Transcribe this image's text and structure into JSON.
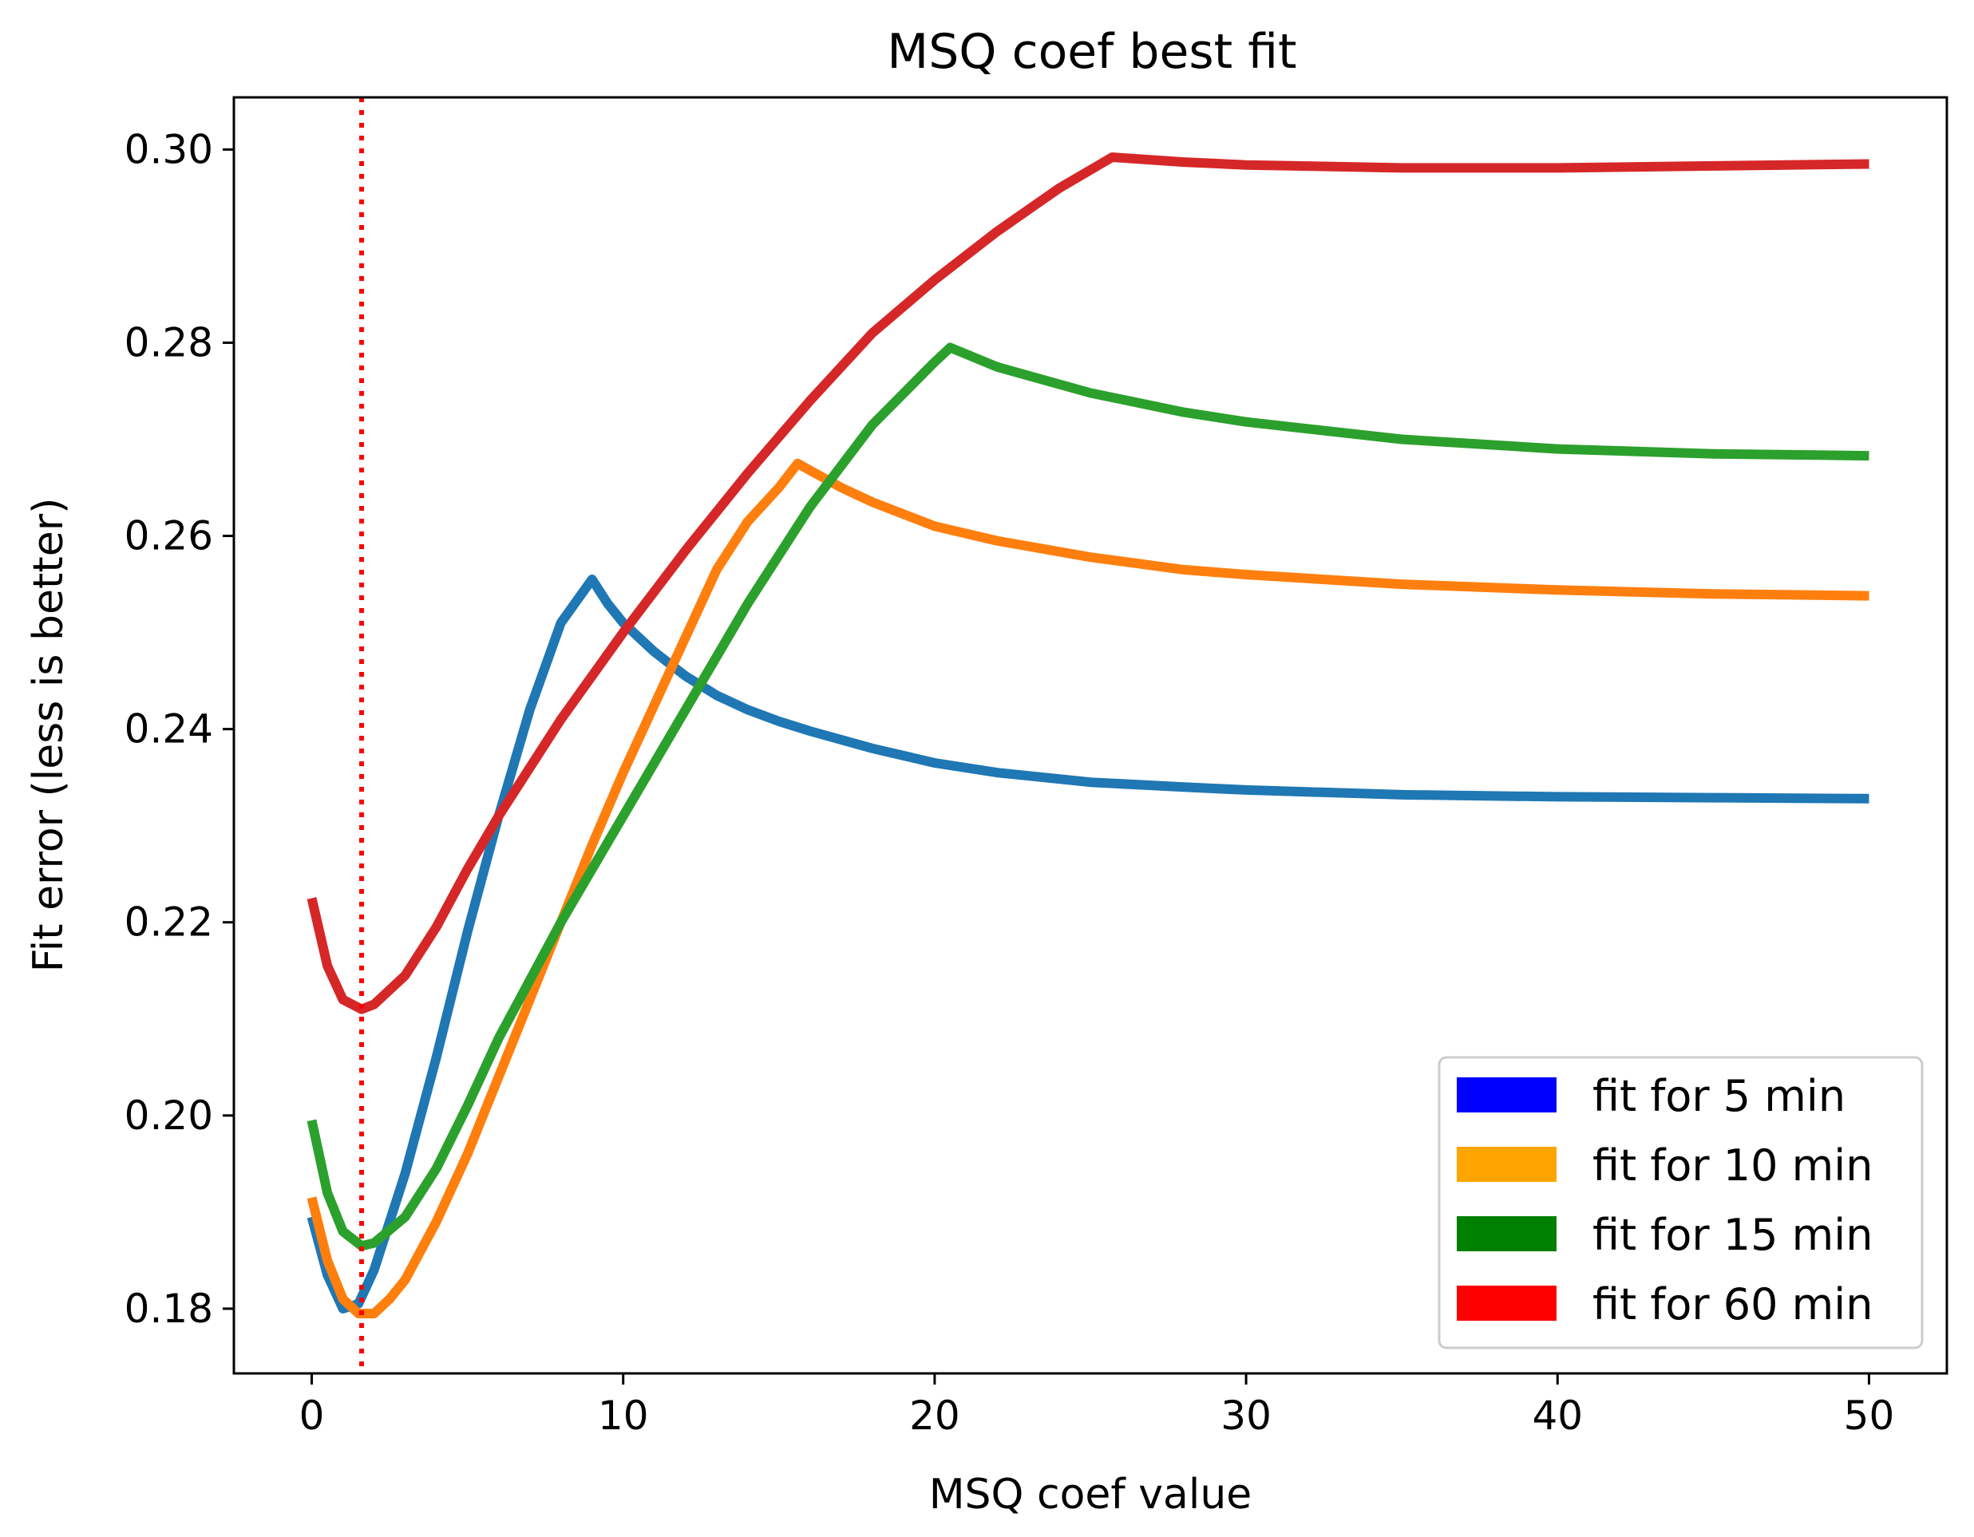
{
  "chart_data": {
    "type": "line",
    "title": "MSQ coef best fit",
    "xlabel": "MSQ coef value",
    "ylabel": "Fit error (less is better)",
    "xlim": [
      -2.5,
      52.5
    ],
    "ylim": [
      0.1733,
      0.3054
    ],
    "xticks": [
      0,
      10,
      20,
      30,
      40,
      50
    ],
    "xtick_labels": [
      "0",
      "10",
      "20",
      "30",
      "40",
      "50"
    ],
    "yticks": [
      0.18,
      0.2,
      0.22,
      0.24,
      0.26,
      0.28,
      0.3
    ],
    "ytick_labels": [
      "0.18",
      "0.20",
      "0.22",
      "0.24",
      "0.26",
      "0.28",
      "0.30"
    ],
    "grid": false,
    "legend_position": "lower-right",
    "vline": {
      "x": 1.6,
      "color": "#ff0000",
      "style": "dotted"
    },
    "series": [
      {
        "name": "fit for 5 min",
        "color": "#1f77b4",
        "legend_color": "#0000ff",
        "x": [
          0,
          0.5,
          1.0,
          1.5,
          2.0,
          3.0,
          4.0,
          5.0,
          6.0,
          7.0,
          8.0,
          9.0,
          9.5,
          10,
          11,
          12,
          13,
          14,
          15,
          16,
          18,
          20,
          22,
          25,
          28,
          30,
          35,
          40,
          45,
          50
        ],
        "values": [
          0.1895,
          0.1835,
          0.18,
          0.1805,
          0.184,
          0.194,
          0.206,
          0.219,
          0.231,
          0.242,
          0.251,
          0.2555,
          0.253,
          0.251,
          0.248,
          0.2455,
          0.2435,
          0.242,
          0.2408,
          0.2398,
          0.238,
          0.2365,
          0.2355,
          0.2345,
          0.234,
          0.2337,
          0.2332,
          0.233,
          0.2329,
          0.2328
        ]
      },
      {
        "name": "fit for 10 min",
        "color": "#ff7f0e",
        "legend_color": "#ffa500",
        "x": [
          0,
          0.5,
          1.0,
          1.5,
          2.0,
          2.5,
          3.0,
          4.0,
          5.0,
          6.0,
          7.0,
          8.0,
          9.0,
          10,
          11,
          12,
          13,
          14,
          15,
          15.6,
          17,
          18,
          20,
          22,
          25,
          28,
          30,
          35,
          40,
          45,
          50
        ],
        "values": [
          0.1915,
          0.185,
          0.181,
          0.1795,
          0.1795,
          0.181,
          0.183,
          0.189,
          0.196,
          0.204,
          0.212,
          0.22,
          0.228,
          0.2355,
          0.2425,
          0.2495,
          0.2565,
          0.2615,
          0.265,
          0.2675,
          0.265,
          0.2635,
          0.261,
          0.2595,
          0.2578,
          0.2565,
          0.256,
          0.255,
          0.2544,
          0.254,
          0.2538
        ]
      },
      {
        "name": "fit for 15 min",
        "color": "#2ca02c",
        "legend_color": "#008000",
        "x": [
          0,
          0.5,
          1.0,
          1.6,
          2.0,
          3.0,
          4.0,
          5.0,
          6.0,
          8.0,
          10,
          12,
          14,
          16,
          18,
          20,
          20.5,
          22,
          25,
          28,
          30,
          35,
          40,
          45,
          50
        ],
        "values": [
          0.1995,
          0.192,
          0.188,
          0.1865,
          0.1868,
          0.1895,
          0.1945,
          0.201,
          0.208,
          0.22,
          0.231,
          0.242,
          0.253,
          0.263,
          0.2715,
          0.278,
          0.2795,
          0.2775,
          0.2748,
          0.2728,
          0.2718,
          0.27,
          0.269,
          0.2685,
          0.2683
        ]
      },
      {
        "name": "fit for 60 min",
        "color": "#d62728",
        "legend_color": "#ff0000",
        "x": [
          0,
          0.5,
          1.0,
          1.6,
          2.0,
          3.0,
          4.0,
          5.0,
          6.0,
          8.0,
          10,
          12,
          14,
          16,
          18,
          20,
          22,
          24,
          25.7,
          28,
          30,
          35,
          40,
          45,
          50
        ],
        "values": [
          0.2225,
          0.2155,
          0.212,
          0.211,
          0.2115,
          0.2145,
          0.2195,
          0.2255,
          0.231,
          0.241,
          0.25,
          0.2585,
          0.2665,
          0.274,
          0.281,
          0.2865,
          0.2915,
          0.296,
          0.2992,
          0.2987,
          0.2984,
          0.2981,
          0.2981,
          0.2983,
          0.2985
        ]
      }
    ]
  }
}
